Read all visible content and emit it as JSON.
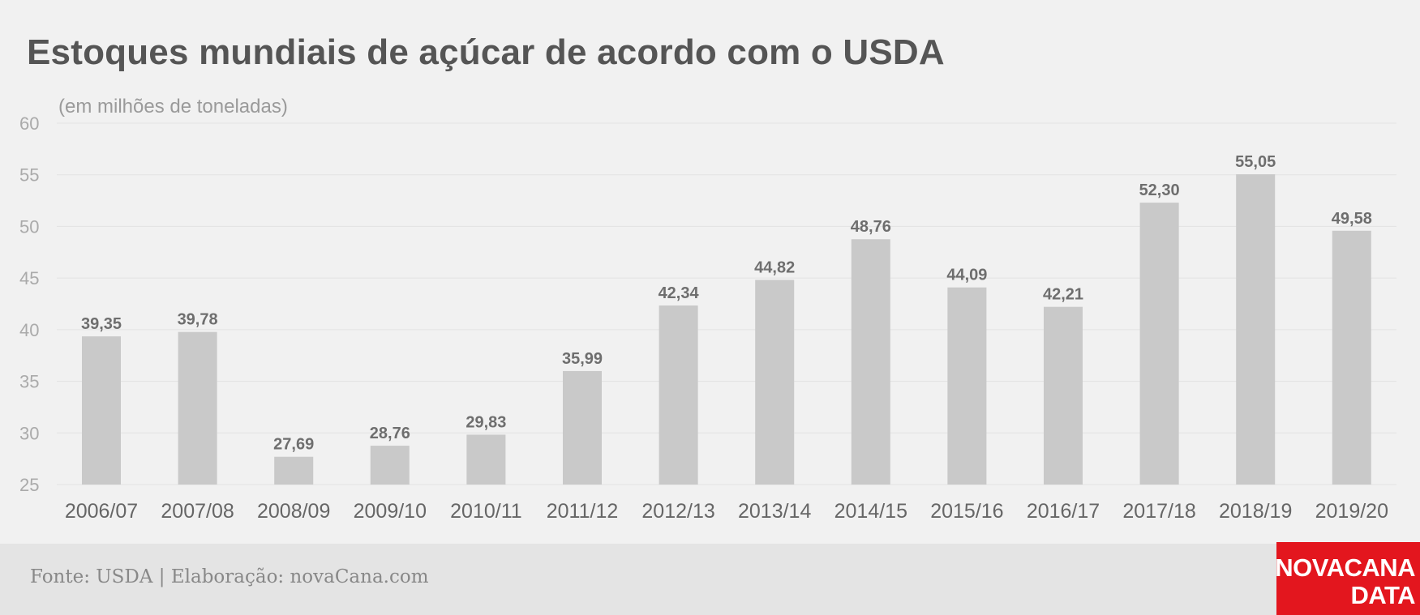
{
  "chart_data": {
    "type": "bar",
    "title": "Estoques mundiais de açúcar de acordo com o USDA",
    "subtitle": "(em milhões de toneladas)",
    "categories": [
      "2006/07",
      "2007/08",
      "2008/09",
      "2009/10",
      "2010/11",
      "2011/12",
      "2012/13",
      "2013/14",
      "2014/15",
      "2015/16",
      "2016/17",
      "2017/18",
      "2018/19",
      "2019/20"
    ],
    "values": [
      39.35,
      39.78,
      27.69,
      28.76,
      29.83,
      35.99,
      42.34,
      44.82,
      48.76,
      44.09,
      42.21,
      52.3,
      55.05,
      49.58
    ],
    "data_labels": [
      "39,35",
      "39,78",
      "27,69",
      "28,76",
      "29,83",
      "35,99",
      "42,34",
      "44,82",
      "48,76",
      "44,09",
      "42,21",
      "52,30",
      "55,05",
      "49,58"
    ],
    "ylim": [
      25,
      60
    ],
    "yticks": [
      25,
      30,
      35,
      40,
      45,
      50,
      55,
      60
    ],
    "xlabel": "",
    "ylabel": "",
    "grid": true,
    "legend": "none",
    "colors": {
      "bar": "#c9c9c9",
      "label": "#6e6e6e",
      "tick": "#aaaaaa",
      "grid": "#e2e2e2"
    }
  },
  "footer": {
    "source": "Fonte: USDA | Elaboração: novaCana.com"
  },
  "logo": {
    "line1": "NOVACANA",
    "line2": "DATA",
    "color": "#e3161e"
  }
}
